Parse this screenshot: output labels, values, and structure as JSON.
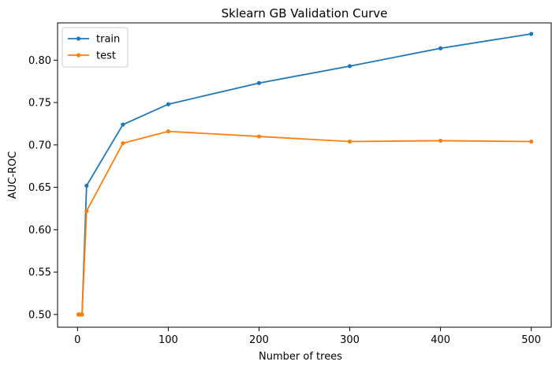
{
  "chart_data": {
    "type": "line",
    "title": "Sklearn GB Validation Curve",
    "xlabel": "Number of trees",
    "ylabel": "AUC-ROC",
    "xlim": [
      -22,
      522
    ],
    "ylim": [
      0.485,
      0.844
    ],
    "xticks": [
      0,
      100,
      200,
      300,
      400,
      500
    ],
    "xtick_labels": [
      "0",
      "100",
      "200",
      "300",
      "400",
      "500"
    ],
    "yticks": [
      0.5,
      0.55,
      0.6,
      0.65,
      0.7,
      0.75,
      0.8
    ],
    "ytick_labels": [
      "0.50",
      "0.55",
      "0.60",
      "0.65",
      "0.70",
      "0.75",
      "0.80"
    ],
    "grid": false,
    "legend_position": "top-left",
    "series": [
      {
        "name": "train",
        "color": "#1f77b4",
        "x": [
          1,
          3,
          5,
          10,
          50,
          100,
          200,
          300,
          400,
          500
        ],
        "y": [
          0.5,
          0.5,
          0.5,
          0.652,
          0.724,
          0.748,
          0.773,
          0.793,
          0.814,
          0.831
        ]
      },
      {
        "name": "test",
        "color": "#ff7f0e",
        "x": [
          1,
          3,
          5,
          10,
          50,
          100,
          200,
          300,
          400,
          500
        ],
        "y": [
          0.5,
          0.5,
          0.5,
          0.622,
          0.702,
          0.716,
          0.71,
          0.704,
          0.705,
          0.704
        ]
      }
    ]
  }
}
